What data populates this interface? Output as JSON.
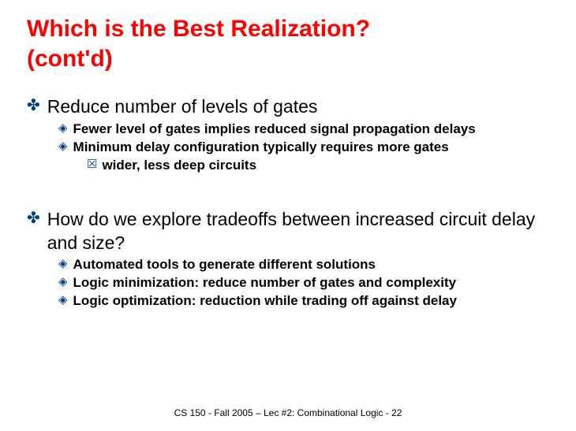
{
  "title_line1": "Which is the Best Realization?",
  "title_line2": "(cont'd)",
  "section1": {
    "heading": "Reduce number of levels of gates",
    "y1": "Fewer level of gates implies reduced signal propagation delays",
    "y2": "Minimum delay configuration typically requires more gates",
    "x1": "wider, less deep circuits"
  },
  "section2": {
    "heading": "How do we explore tradeoffs between increased circuit delay and size?",
    "y1": "Automated tools to generate different solutions",
    "y2": "Logic minimization: reduce number of gates and complexity",
    "y3": "Logic optimization: reduction while trading off against delay"
  },
  "footer": "CS 150 - Fall 2005 – Lec #2: Combinational Logic - 22",
  "markers": {
    "z": "✤",
    "y": "◈",
    "x": "☒"
  }
}
